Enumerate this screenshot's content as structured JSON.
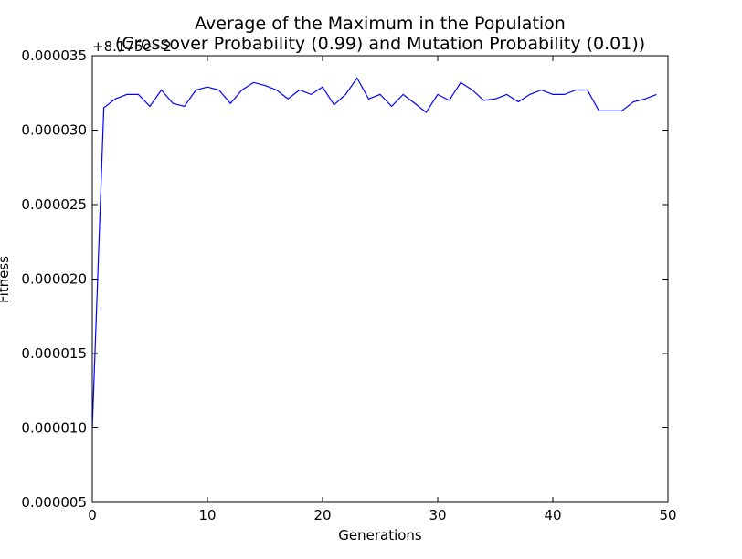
{
  "chart_data": {
    "type": "line",
    "title": "Average of the Maximum in the Population",
    "subtitle": "(Crossover Probability (0.99) and Mutation Probability (0.01))",
    "xlabel": "Generations",
    "ylabel": "Fitness",
    "y_offset_label": "+8.175e−2",
    "xlim": [
      0,
      50
    ],
    "ylim": [
      5e-06,
      3.5e-05
    ],
    "x_ticks": [
      0,
      10,
      20,
      30,
      40,
      50
    ],
    "x_tick_labels": [
      "0",
      "10",
      "20",
      "30",
      "40",
      "50"
    ],
    "y_ticks": [
      5e-06,
      1e-05,
      1.5e-05,
      2e-05,
      2.5e-05,
      3e-05,
      3.5e-05
    ],
    "y_tick_labels": [
      "0.000005",
      "0.000010",
      "0.000015",
      "0.000020",
      "0.000025",
      "0.000030",
      "0.000035"
    ],
    "grid": false,
    "line_color": "#0000ff",
    "x": [
      0,
      1,
      2,
      3,
      4,
      5,
      6,
      7,
      8,
      9,
      10,
      11,
      12,
      13,
      14,
      15,
      16,
      17,
      18,
      19,
      20,
      21,
      22,
      23,
      24,
      25,
      26,
      27,
      28,
      29,
      30,
      31,
      32,
      33,
      34,
      35,
      36,
      37,
      38,
      39,
      40,
      41,
      42,
      43,
      44,
      45,
      46,
      47,
      48,
      49
    ],
    "values": [
      1e-05,
      3.15e-05,
      3.21e-05,
      3.24e-05,
      3.24e-05,
      3.16e-05,
      3.27e-05,
      3.18e-05,
      3.16e-05,
      3.27e-05,
      3.29e-05,
      3.27e-05,
      3.18e-05,
      3.27e-05,
      3.32e-05,
      3.3e-05,
      3.27e-05,
      3.21e-05,
      3.27e-05,
      3.24e-05,
      3.29e-05,
      3.17e-05,
      3.24e-05,
      3.35e-05,
      3.21e-05,
      3.24e-05,
      3.16e-05,
      3.24e-05,
      3.18e-05,
      3.12e-05,
      3.24e-05,
      3.2e-05,
      3.32e-05,
      3.27e-05,
      3.2e-05,
      3.21e-05,
      3.24e-05,
      3.19e-05,
      3.24e-05,
      3.27e-05,
      3.24e-05,
      3.24e-05,
      3.27e-05,
      3.27e-05,
      3.13e-05,
      3.13e-05,
      3.13e-05,
      3.19e-05,
      3.21e-05,
      3.24e-05
    ]
  }
}
